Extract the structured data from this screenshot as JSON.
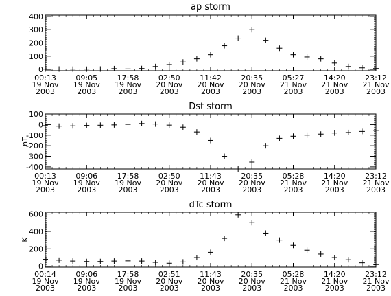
{
  "chart_data": [
    {
      "type": "scatter",
      "title": "ap storm",
      "ylabel": "",
      "ylim": [
        -10,
        410
      ],
      "yticks": [
        0,
        100,
        200,
        300,
        400
      ],
      "x_ticks": [
        {
          "time": "00:13",
          "day": "19 Nov",
          "year": "2003"
        },
        {
          "time": "09:05",
          "day": "19 Nov",
          "year": "2003"
        },
        {
          "time": "17:58",
          "day": "19 Nov",
          "year": "2003"
        },
        {
          "time": "02:50",
          "day": "20 Nov",
          "year": "2003"
        },
        {
          "time": "11:42",
          "day": "20 Nov",
          "year": "2003"
        },
        {
          "time": "20:35",
          "day": "20 Nov",
          "year": "2003"
        },
        {
          "time": "05:27",
          "day": "21 Nov",
          "year": "2003"
        },
        {
          "time": "14:20",
          "day": "21 Nov",
          "year": "2003"
        },
        {
          "time": "23:12",
          "day": "21 Nov",
          "year": "2003"
        }
      ],
      "x_hours": [
        0,
        3,
        6,
        9,
        12,
        15,
        18,
        21,
        24,
        27,
        30,
        33,
        36,
        39,
        42,
        45,
        48,
        51,
        54,
        57,
        60,
        63,
        66,
        69,
        72
      ],
      "values": [
        2,
        3,
        2,
        2,
        3,
        6,
        4,
        7,
        22,
        37,
        56,
        80,
        111,
        179,
        236,
        300,
        220,
        160,
        111,
        94,
        80,
        48,
        22,
        12,
        7
      ],
      "marker": "+"
    },
    {
      "type": "scatter",
      "title": "Dst storm",
      "ylabel": "nT",
      "ylim": [
        -420,
        100
      ],
      "yticks": [
        100,
        0,
        -100,
        -200,
        -300,
        -400
      ],
      "x_ticks": [
        {
          "time": "00:13",
          "day": "19 Nov",
          "year": "2003"
        },
        {
          "time": "09:06",
          "day": "19 Nov",
          "year": "2003"
        },
        {
          "time": "17:58",
          "day": "19 Nov",
          "year": "2003"
        },
        {
          "time": "02:50",
          "day": "20 Nov",
          "year": "2003"
        },
        {
          "time": "11:43",
          "day": "20 Nov",
          "year": "2003"
        },
        {
          "time": "20:35",
          "day": "20 Nov",
          "year": "2003"
        },
        {
          "time": "05:28",
          "day": "21 Nov",
          "year": "2003"
        },
        {
          "time": "14:20",
          "day": "21 Nov",
          "year": "2003"
        },
        {
          "time": "23:12",
          "day": "21 Nov",
          "year": "2003"
        }
      ],
      "x_hours": [
        0,
        3,
        6,
        9,
        12,
        15,
        18,
        21,
        24,
        27,
        30,
        33,
        36,
        39,
        42,
        45,
        48,
        51,
        54,
        57,
        60,
        63,
        66,
        69,
        72
      ],
      "values": [
        -10,
        -15,
        -12,
        -8,
        -6,
        -3,
        2,
        10,
        5,
        -5,
        -25,
        -70,
        -150,
        -300,
        -422,
        -355,
        -200,
        -130,
        -110,
        -100,
        -90,
        -80,
        -75,
        -65,
        -55
      ],
      "marker": "+"
    },
    {
      "type": "scatter",
      "title": "dTc storm",
      "ylabel": "K",
      "ylim": [
        -10,
        620
      ],
      "yticks": [
        0,
        200,
        400,
        600
      ],
      "x_ticks": [
        {
          "time": "00:14",
          "day": "19 Nov",
          "year": "2003"
        },
        {
          "time": "09:06",
          "day": "19 Nov",
          "year": "2003"
        },
        {
          "time": "17:58",
          "day": "19 Nov",
          "year": "2003"
        },
        {
          "time": "02:51",
          "day": "20 Nov",
          "year": "2003"
        },
        {
          "time": "11:43",
          "day": "20 Nov",
          "year": "2003"
        },
        {
          "time": "20:35",
          "day": "20 Nov",
          "year": "2003"
        },
        {
          "time": "05:28",
          "day": "21 Nov",
          "year": "2003"
        },
        {
          "time": "14:20",
          "day": "21 Nov",
          "year": "2003"
        },
        {
          "time": "23:12",
          "day": "21 Nov",
          "year": "2003"
        }
      ],
      "x_hours": [
        0,
        3,
        6,
        9,
        12,
        15,
        18,
        21,
        24,
        27,
        30,
        33,
        36,
        39,
        42,
        45,
        48,
        51,
        54,
        57,
        60,
        63,
        66,
        69,
        72
      ],
      "values": [
        80,
        70,
        60,
        55,
        55,
        60,
        62,
        60,
        45,
        35,
        50,
        100,
        160,
        320,
        590,
        500,
        380,
        300,
        240,
        185,
        140,
        100,
        75,
        40,
        20
      ],
      "marker": "+"
    }
  ]
}
